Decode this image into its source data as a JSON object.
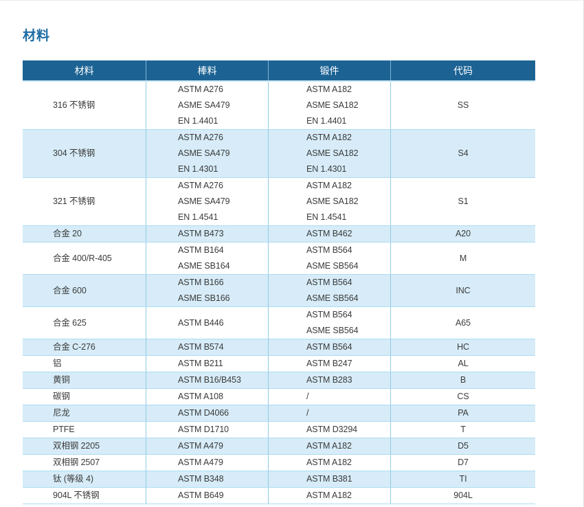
{
  "page": {
    "title": "材料"
  },
  "table": {
    "headers": [
      "材料",
      "棒料",
      "锻件",
      "代码"
    ],
    "rows": [
      {
        "material": "316 不锈钢",
        "bar": [
          "ASTM A276",
          "ASME SA479",
          "EN 1.4401"
        ],
        "forging": [
          "ASTM A182",
          "ASME SA182",
          "EN 1.4401"
        ],
        "code": "SS"
      },
      {
        "material": "304 不锈钢",
        "bar": [
          "ASTM A276",
          "ASME SA479",
          "EN 1.4301"
        ],
        "forging": [
          "ASTM A182",
          "ASME SA182",
          "EN 1.4301"
        ],
        "code": "S4"
      },
      {
        "material": "321 不锈钢",
        "bar": [
          "ASTM A276",
          "ASME SA479",
          "EN 1.4541"
        ],
        "forging": [
          "ASTM A182",
          "ASME SA182",
          "EN 1.4541"
        ],
        "code": "S1"
      },
      {
        "material": "合金 20",
        "bar": [
          "ASTM B473"
        ],
        "forging": [
          "ASTM B462"
        ],
        "code": "A20"
      },
      {
        "material": "合金 400/R-405",
        "bar": [
          "ASTM B164",
          "ASME SB164"
        ],
        "forging": [
          "ASTM B564",
          "ASME SB564"
        ],
        "code": "M"
      },
      {
        "material": "合金 600",
        "bar": [
          "ASTM B166",
          "ASME SB166"
        ],
        "forging": [
          "ASTM B564",
          "ASME SB564"
        ],
        "code": "INC"
      },
      {
        "material": "合金 625",
        "bar": [
          "ASTM B446"
        ],
        "forging": [
          "ASTM B564",
          "ASME SB564"
        ],
        "code": "A65"
      },
      {
        "material": "合金 C-276",
        "bar": [
          "ASTM B574"
        ],
        "forging": [
          "ASTM B564"
        ],
        "code": "HC"
      },
      {
        "material": "铝",
        "bar": [
          "ASTM B211"
        ],
        "forging": [
          "ASTM B247"
        ],
        "code": "AL"
      },
      {
        "material": "黄铜",
        "bar": [
          "ASTM B16/B453"
        ],
        "forging": [
          "ASTM B283"
        ],
        "code": "B"
      },
      {
        "material": "碳钢",
        "bar": [
          "ASTM A108"
        ],
        "forging": [
          "/"
        ],
        "code": "CS"
      },
      {
        "material": "尼龙",
        "bar": [
          "ASTM D4066"
        ],
        "forging": [
          "/"
        ],
        "code": "PA"
      },
      {
        "material": "PTFE",
        "bar": [
          "ASTM D1710"
        ],
        "forging": [
          "ASTM D3294"
        ],
        "code": "T"
      },
      {
        "material": "双相钢 2205",
        "bar": [
          "ASTM A479"
        ],
        "forging": [
          "ASTM A182"
        ],
        "code": "D5"
      },
      {
        "material": "双相钢 2507",
        "bar": [
          "ASTM A479"
        ],
        "forging": [
          "ASTM A182"
        ],
        "code": "D7"
      },
      {
        "material": "钛 (等级 4)",
        "bar": [
          "ASTM B348"
        ],
        "forging": [
          "ASTM B381"
        ],
        "code": "TI"
      },
      {
        "material": "904L 不锈钢",
        "bar": [
          "ASTM B649"
        ],
        "forging": [
          "ASTM A182"
        ],
        "code": "904L"
      }
    ]
  },
  "colors": {
    "header_bg": "#1C6394",
    "header_text": "#FFFFFF",
    "zebra_row_bg": "#D7ECF8",
    "grid_vertical": "#8FC9E5",
    "grid_horizontal": "#ABDCF2",
    "header_divider": "#7FB3D2",
    "title_text": "#1C6CA4",
    "body_text": "#3A3A3A"
  }
}
